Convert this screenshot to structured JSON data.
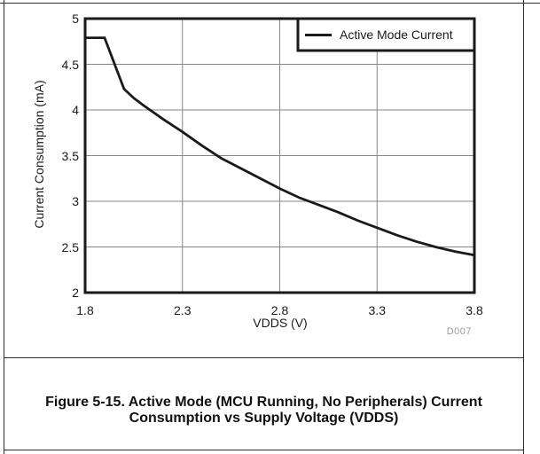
{
  "figure": {
    "caption_line1": "Figure 5-15. Active Mode (MCU Running, No Peripherals) Current",
    "caption_line2": "Consumption vs Supply Voltage (VDDS)",
    "watermark": "D007"
  },
  "chart_data": {
    "type": "line",
    "title": "",
    "xlabel": "VDDS (V)",
    "ylabel": "Current Consumption (mA)",
    "xlim": [
      1.8,
      3.8
    ],
    "ylim": [
      2,
      5
    ],
    "x_ticks": [
      1.8,
      2.3,
      2.8,
      3.3,
      3.8
    ],
    "y_ticks": [
      2,
      2.5,
      3,
      3.5,
      4,
      4.5,
      5
    ],
    "grid": true,
    "legend": {
      "position": "top-right",
      "entries": [
        "Active Mode Current"
      ]
    },
    "series": [
      {
        "name": "Active Mode Current",
        "color": "#1a1a1a",
        "x": [
          1.8,
          1.9,
          1.95,
          2.0,
          2.05,
          2.1,
          2.2,
          2.3,
          2.4,
          2.5,
          2.6,
          2.7,
          2.8,
          2.9,
          3.0,
          3.1,
          3.2,
          3.3,
          3.4,
          3.5,
          3.6,
          3.7,
          3.8
        ],
        "y": [
          4.79,
          4.79,
          4.51,
          4.23,
          4.13,
          4.05,
          3.9,
          3.76,
          3.61,
          3.47,
          3.36,
          3.25,
          3.14,
          3.04,
          2.96,
          2.88,
          2.79,
          2.71,
          2.63,
          2.56,
          2.5,
          2.45,
          2.41
        ]
      }
    ],
    "colors": {
      "grid": "#868686",
      "axis_frame": "#1a1a1a",
      "watermark": "#9a9a9a"
    }
  }
}
